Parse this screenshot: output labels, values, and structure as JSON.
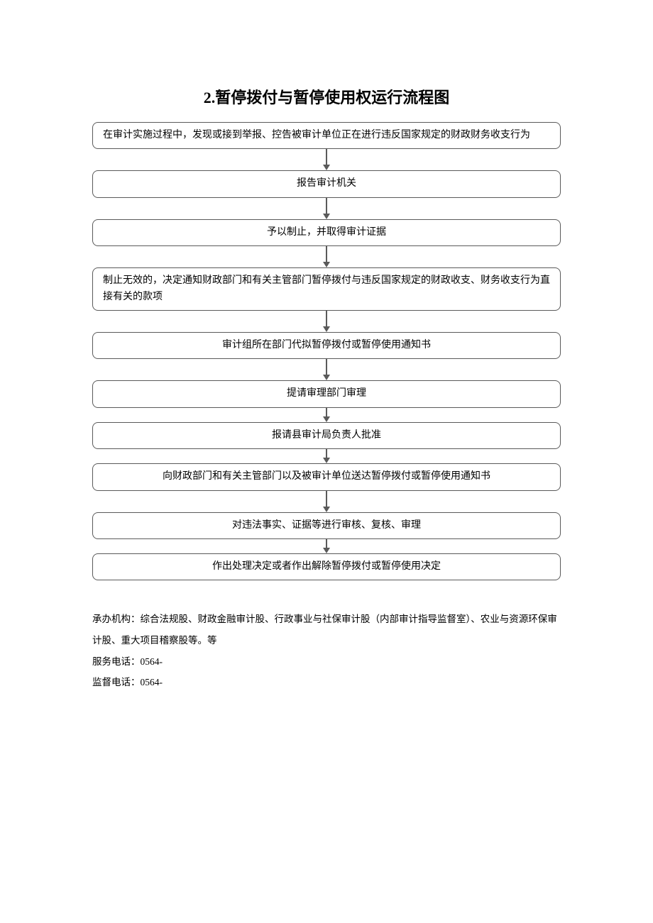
{
  "title": "2.暂停拨付与暂停使用权运行流程图",
  "flowchart": {
    "type": "flowchart",
    "node_border_color": "#5a5a5a",
    "node_border_radius": 8,
    "node_border_width": 1.5,
    "node_bg_color": "#ffffff",
    "node_text_color": "#000000",
    "node_fontsize": 14,
    "arrow_color": "#5a5a5a",
    "arrow_heights": [
      30,
      30,
      30,
      30,
      30,
      20,
      20,
      30,
      20
    ],
    "nodes": [
      {
        "text": "在审计实施过程中，发现或接到举报、控告被审计单位正在进行违反国家规定的财政财务收支行为",
        "align": "left"
      },
      {
        "text": "报告审计机关",
        "align": "center"
      },
      {
        "text": "予以制止，并取得审计证据",
        "align": "center"
      },
      {
        "text": "制止无效的，决定通知财政部门和有关主管部门暂停拨付与违反国家规定的财政收支、财务收支行为直接有关的款项",
        "align": "left"
      },
      {
        "text": "审计组所在部门代拟暂停拨付或暂停使用通知书",
        "align": "center"
      },
      {
        "text": "提请审理部门审理",
        "align": "center"
      },
      {
        "text": "报请县审计局负责人批准",
        "align": "center"
      },
      {
        "text": "向财政部门和有关主管部门以及被审计单位送达暂停拨付或暂停使用通知书",
        "align": "center"
      },
      {
        "text": "对违法事实、证据等进行审核、复核、审理",
        "align": "center"
      },
      {
        "text": "作出处理决定或者作出解除暂停拨付或暂停使用决定",
        "align": "center"
      }
    ]
  },
  "footer": {
    "lines": [
      "承办机构：综合法规股、财政金融审计股、行政事业与社保审计股（内部审计指导监督室）、农业与资源环保审计股、重大项目稽察股等。等",
      "服务电话：0564-",
      "监督电话：0564-"
    ],
    "fontsize": 13.5,
    "text_color": "#000000"
  },
  "background_color": "#ffffff"
}
